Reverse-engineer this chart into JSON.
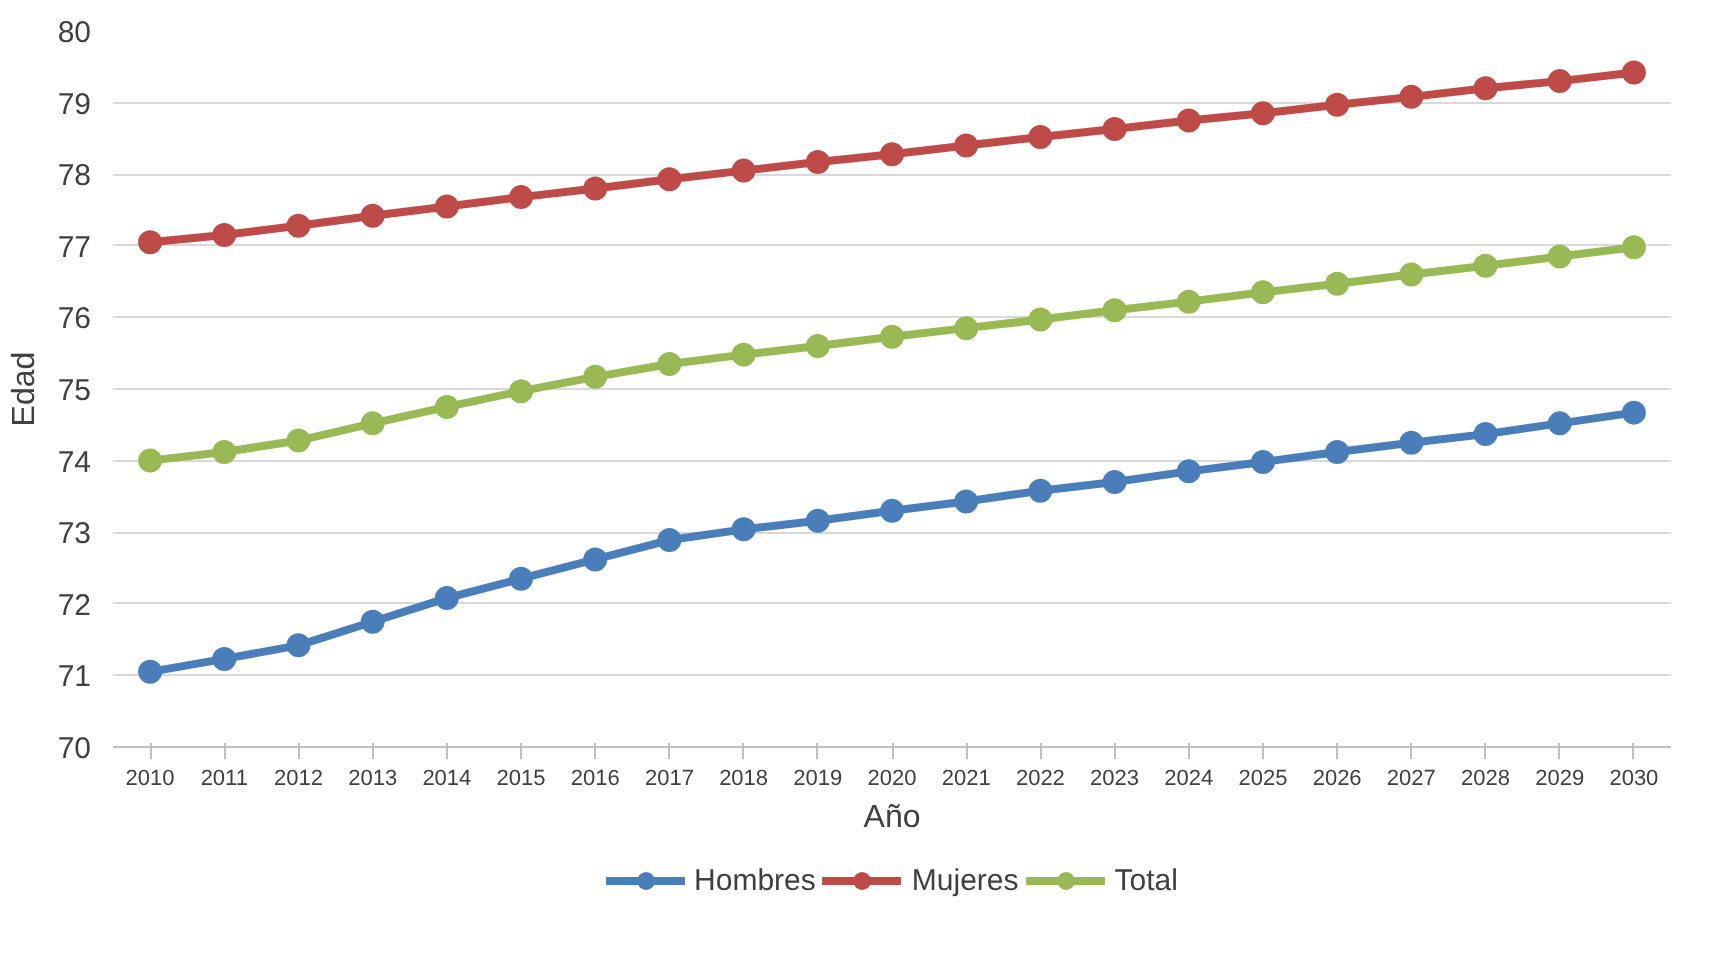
{
  "chart_data": {
    "type": "line",
    "xlabel": "Año",
    "ylabel": "Edad",
    "categories": [
      "2010",
      "2011",
      "2012",
      "2013",
      "2014",
      "2015",
      "2016",
      "2017",
      "2018",
      "2019",
      "2020",
      "2021",
      "2022",
      "2023",
      "2024",
      "2025",
      "2026",
      "2027",
      "2028",
      "2029",
      "2030"
    ],
    "series": [
      {
        "name": "Hombres",
        "color": "#4a7ebb",
        "values": [
          71.05,
          71.23,
          71.42,
          71.75,
          72.08,
          72.35,
          72.62,
          72.89,
          73.04,
          73.16,
          73.3,
          73.43,
          73.58,
          73.7,
          73.85,
          73.98,
          74.12,
          74.25,
          74.37,
          74.52,
          74.67
        ]
      },
      {
        "name": "Mujeres",
        "color": "#be4b48",
        "values": [
          77.05,
          77.15,
          77.28,
          77.42,
          77.55,
          77.68,
          77.8,
          77.93,
          78.05,
          78.17,
          78.28,
          78.4,
          78.52,
          78.63,
          78.75,
          78.85,
          78.97,
          79.08,
          79.2,
          79.3,
          79.42
        ]
      },
      {
        "name": "Total",
        "color": "#98b954",
        "values": [
          74.0,
          74.12,
          74.28,
          74.52,
          74.75,
          74.97,
          75.17,
          75.35,
          75.48,
          75.6,
          75.73,
          75.85,
          75.97,
          76.1,
          76.22,
          76.35,
          76.47,
          76.6,
          76.72,
          76.85,
          76.98
        ]
      }
    ],
    "ylim": [
      70,
      80
    ],
    "yticks": [
      70,
      71,
      72,
      73,
      74,
      75,
      76,
      77,
      78,
      79,
      80
    ],
    "grid": "y",
    "legend": "bottom",
    "marker": "circle",
    "line_style": "solid"
  }
}
